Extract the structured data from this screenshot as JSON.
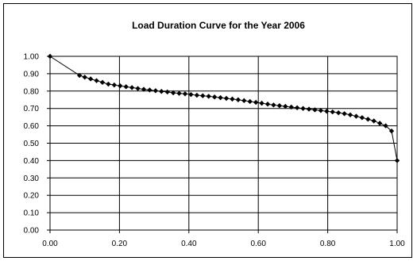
{
  "chart_data": {
    "type": "line",
    "title": "Load Duration Curve for the Year 2006",
    "xlabel": "",
    "ylabel": "",
    "xlim": [
      0,
      1
    ],
    "ylim": [
      0,
      1
    ],
    "x_ticks": [
      "0.00",
      "0.20",
      "0.40",
      "0.60",
      "0.80",
      "1.00"
    ],
    "y_ticks": [
      "1.00",
      "0.90",
      "0.80",
      "0.70",
      "0.60",
      "0.50",
      "0.40",
      "0.30",
      "0.20",
      "0.10",
      "0.00"
    ],
    "grid": true,
    "legend": false,
    "series_color": "#000000",
    "series": [
      {
        "x": [
          0.0,
          0.085,
          0.1,
          0.117,
          0.134,
          0.151,
          0.168,
          0.185,
          0.202,
          0.219,
          0.236,
          0.253,
          0.27,
          0.287,
          0.304,
          0.321,
          0.338,
          0.355,
          0.372,
          0.389,
          0.406,
          0.423,
          0.44,
          0.457,
          0.474,
          0.491,
          0.508,
          0.525,
          0.542,
          0.559,
          0.576,
          0.593,
          0.61,
          0.627,
          0.644,
          0.661,
          0.678,
          0.695,
          0.712,
          0.729,
          0.746,
          0.763,
          0.78,
          0.797,
          0.814,
          0.831,
          0.848,
          0.865,
          0.882,
          0.899,
          0.916,
          0.933,
          0.95,
          0.967,
          0.984,
          1.0
        ],
        "values": [
          1.0,
          0.89,
          0.88,
          0.87,
          0.86,
          0.85,
          0.84,
          0.835,
          0.83,
          0.825,
          0.82,
          0.815,
          0.81,
          0.806,
          0.802,
          0.798,
          0.795,
          0.79,
          0.787,
          0.784,
          0.78,
          0.776,
          0.773,
          0.77,
          0.766,
          0.762,
          0.758,
          0.754,
          0.75,
          0.745,
          0.74,
          0.735,
          0.73,
          0.725,
          0.72,
          0.716,
          0.712,
          0.708,
          0.704,
          0.7,
          0.696,
          0.692,
          0.688,
          0.684,
          0.68,
          0.675,
          0.67,
          0.663,
          0.655,
          0.647,
          0.638,
          0.628,
          0.615,
          0.6,
          0.57,
          0.4
        ]
      }
    ]
  }
}
